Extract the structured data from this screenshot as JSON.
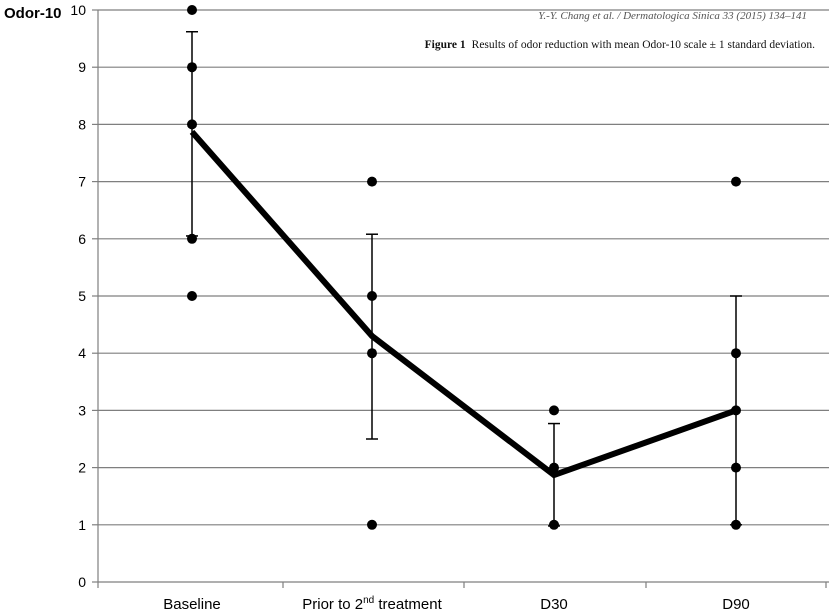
{
  "header": {
    "journal": "Y.-Y. Chang et al. / Dermatologica Sinica 33 (2015) 134–141",
    "figure_label": "Figure 1",
    "caption": "Results of odor reduction with mean Odor-10 scale ± 1 standard deviation."
  },
  "chart_data": {
    "type": "line",
    "ylabel": "Odor-10",
    "ylim": [
      0,
      10
    ],
    "yticks": [
      "0",
      "1",
      "2",
      "3",
      "4",
      "5",
      "6",
      "7",
      "8",
      "9",
      "10"
    ],
    "grid": true,
    "categories": [
      {
        "main": "Baseline",
        "sup": "",
        "rest": ""
      },
      {
        "main": "Prior to 2",
        "sup": "nd",
        "rest": " treatment"
      },
      {
        "main": "D30",
        "sup": "",
        "rest": ""
      },
      {
        "main": "D90",
        "sup": "",
        "rest": ""
      }
    ],
    "mean": [
      7.87,
      4.3,
      1.87,
      3.0
    ],
    "std_low": [
      6.05,
      2.5,
      0.98,
      1.0
    ],
    "std_high": [
      9.62,
      6.08,
      2.77,
      5.0
    ],
    "points": [
      [
        10,
        9,
        8,
        6,
        5
      ],
      [
        7,
        5,
        4,
        1
      ],
      [
        3,
        2,
        1
      ],
      [
        7,
        4,
        3,
        2,
        1
      ]
    ],
    "colors": {
      "line": "#000000",
      "grid": "#7f7f7f"
    }
  }
}
